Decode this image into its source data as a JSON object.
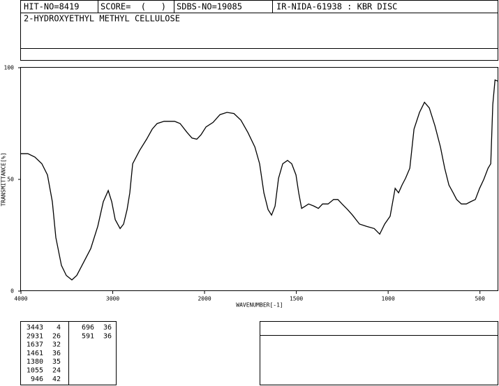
{
  "header": {
    "hit_no": "HIT-NO=8419",
    "score": "SCORE=  (   )",
    "sdbs_no": "SDBS-NO=19085",
    "ir": "IR-NIDA-61938 : KBR DISC",
    "compound": "2-HYDROXYETHYL METHYL CELLULOSE"
  },
  "chart_data": {
    "type": "line",
    "x_label": "WAVENUMBER[-1]",
    "y_label": "TRANSMITTANCE[%]",
    "color": "#000000",
    "xlim": [
      4000,
      400
    ],
    "xscale_break": 2000,
    "xscale_ratio": 2,
    "ylim": [
      0,
      100
    ],
    "xticks": [
      4000,
      3000,
      2000,
      1500,
      1000,
      500
    ],
    "yticks": [
      0,
      50,
      100
    ],
    "x": [
      4000,
      3924,
      3848,
      3772,
      3711,
      3658,
      3620,
      3559,
      3506,
      3445,
      3392,
      3316,
      3240,
      3163,
      3103,
      3049,
      3011,
      2973,
      2920,
      2882,
      2844,
      2814,
      2783,
      2707,
      2631,
      2570,
      2517,
      2441,
      2327,
      2266,
      2190,
      2137,
      2084,
      2038,
      1992,
      1954,
      1916,
      1878,
      1840,
      1802,
      1764,
      1726,
      1700,
      1677,
      1654,
      1635,
      1616,
      1597,
      1574,
      1548,
      1525,
      1502,
      1487,
      1471,
      1452,
      1433,
      1403,
      1380,
      1357,
      1327,
      1297,
      1274,
      1251,
      1221,
      1194,
      1156,
      1118,
      1076,
      1046,
      1019,
      989,
      962,
      943,
      924,
      905,
      882,
      859,
      829,
      802,
      776,
      745,
      715,
      692,
      669,
      646,
      627,
      601,
      574,
      551,
      525,
      502,
      479,
      456,
      441,
      430,
      418,
      403
    ],
    "values": [
      61.5,
      61.5,
      60,
      57,
      52,
      40,
      24,
      11.5,
      7,
      5,
      7,
      13,
      19,
      29,
      40,
      45,
      40,
      32,
      28,
      30,
      36.5,
      44,
      57,
      63,
      68,
      72.5,
      75,
      76,
      76,
      75,
      71,
      68.5,
      68,
      70,
      73.5,
      75.5,
      79,
      80,
      79.5,
      76.5,
      71,
      64.5,
      57,
      44,
      36.5,
      34,
      38,
      50.5,
      57,
      58.5,
      57,
      52,
      44,
      37,
      38,
      39,
      38,
      37,
      39,
      39,
      41,
      41,
      39,
      36.5,
      34,
      30,
      29,
      28,
      25.5,
      30,
      33.5,
      46,
      44,
      47.5,
      50.5,
      55,
      72.5,
      80,
      84.5,
      82,
      74,
      64.5,
      55,
      47.5,
      44,
      41,
      39,
      39,
      40,
      41,
      46,
      50,
      55,
      57,
      83.5,
      94.5,
      94
    ]
  },
  "peaks": [
    [
      3443,
      4
    ],
    [
      2931,
      26
    ],
    [
      1637,
      32
    ],
    [
      1461,
      36
    ],
    [
      1380,
      35
    ],
    [
      1055,
      24
    ],
    [
      946,
      42
    ],
    [
      696,
      36
    ],
    [
      591,
      36
    ]
  ]
}
